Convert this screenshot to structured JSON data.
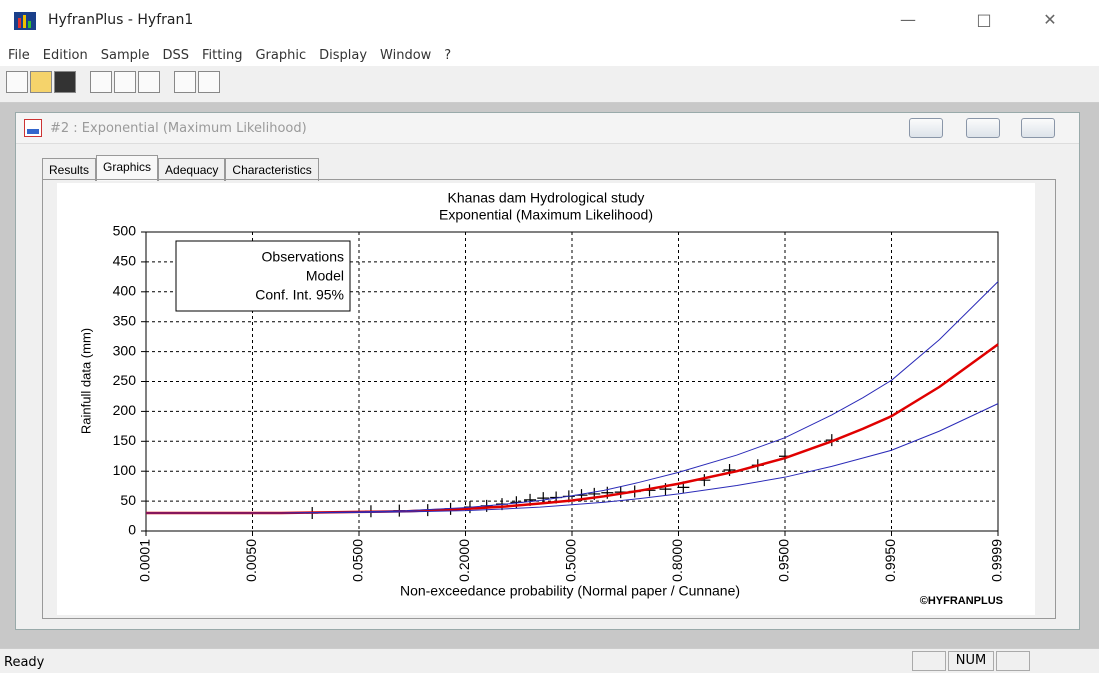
{
  "window": {
    "title": "HyfranPlus - Hyfran1"
  },
  "menu": [
    "File",
    "Edition",
    "Sample",
    "DSS",
    "Fitting",
    "Graphic",
    "Display",
    "Window",
    "?"
  ],
  "child_window": {
    "title": "#2 : Exponential (Maximum Likelihood)"
  },
  "tabs": [
    "Results",
    "Graphics",
    "Adequacy",
    "Characteristics"
  ],
  "selected_tab": 1,
  "chart_data": {
    "type": "line",
    "title": "Khanas dam Hydrological study",
    "subtitle": "Exponential (Maximum Likelihood)",
    "x_label": "Non-exceedance probability (Normal paper / Cunnane)",
    "y_label": "Rainfull data (mm)",
    "credit": "©HYFRANPLUS",
    "xscale": "normal-probability",
    "xlim": [
      0.0001,
      0.9999
    ],
    "xticks": [
      {
        "value": 0.0001,
        "label": "0.0001"
      },
      {
        "value": 0.005,
        "label": "0.0050"
      },
      {
        "value": 0.05,
        "label": "0.0500"
      },
      {
        "value": 0.2,
        "label": "0.2000"
      },
      {
        "value": 0.5,
        "label": "0.5000"
      },
      {
        "value": 0.8,
        "label": "0.8000"
      },
      {
        "value": 0.95,
        "label": "0.9500"
      },
      {
        "value": 0.995,
        "label": "0.9950"
      },
      {
        "value": 0.9999,
        "label": "0.9999"
      }
    ],
    "ylim": [
      0,
      500
    ],
    "yticks": [
      0,
      50,
      100,
      150,
      200,
      250,
      300,
      350,
      400,
      450,
      500
    ],
    "grid": true,
    "legend": "upper left",
    "series": [
      {
        "name": "Observations",
        "color": "#000000",
        "marker": "+",
        "x": [
          0.02,
          0.06,
          0.09,
          0.13,
          0.17,
          0.21,
          0.25,
          0.29,
          0.33,
          0.37,
          0.41,
          0.45,
          0.49,
          0.53,
          0.57,
          0.61,
          0.65,
          0.69,
          0.73,
          0.77,
          0.81,
          0.85,
          0.89,
          0.925,
          0.95,
          0.98
        ],
        "values": [
          30,
          33,
          34,
          35,
          37,
          40,
          42,
          45,
          48,
          52,
          55,
          56,
          58,
          60,
          62,
          64,
          65,
          66,
          68,
          70,
          73,
          85,
          102,
          110,
          125,
          152
        ]
      },
      {
        "name": "Model",
        "color": "#e00000",
        "x": [
          0.0001,
          0.01,
          0.05,
          0.1,
          0.2,
          0.3,
          0.4,
          0.5,
          0.6,
          0.7,
          0.8,
          0.9,
          0.95,
          0.98,
          0.99,
          0.995,
          0.999,
          0.9999
        ],
        "values": [
          30,
          30,
          32,
          33,
          37,
          41,
          46,
          51,
          58,
          67,
          79,
          100,
          122,
          150,
          171,
          192,
          241,
          312
        ]
      },
      {
        "name": "Conf. Int. 95%",
        "color": "#2b2bb8",
        "x": [
          0.0001,
          0.01,
          0.05,
          0.1,
          0.2,
          0.3,
          0.4,
          0.5,
          0.6,
          0.7,
          0.8,
          0.9,
          0.95,
          0.98,
          0.99,
          0.995,
          0.999,
          0.9999
        ],
        "lower": [
          30,
          30,
          31,
          32,
          34,
          37,
          40,
          44,
          48,
          54,
          62,
          76,
          90,
          108,
          122,
          135,
          167,
          213
        ],
        "upper": [
          30,
          30,
          32,
          34,
          39,
          45,
          51,
          59,
          68,
          81,
          98,
          127,
          156,
          194,
          223,
          252,
          320,
          417
        ]
      }
    ]
  },
  "status": {
    "text": "Ready",
    "indicators": [
      "NUM"
    ]
  }
}
